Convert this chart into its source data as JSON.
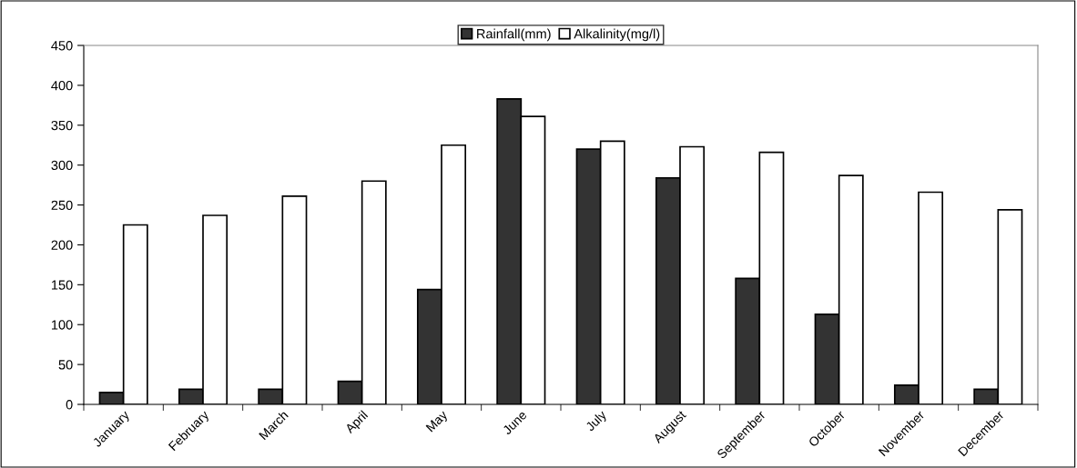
{
  "chart_data": {
    "type": "bar",
    "categories": [
      "January",
      "February",
      "March",
      "April",
      "May",
      "June",
      "July",
      "August",
      "September",
      "October",
      "November",
      "December"
    ],
    "series": [
      {
        "name": "Rainfall(mm)",
        "color": "#333333",
        "values": [
          15,
          19,
          19,
          29,
          144,
          383,
          320,
          284,
          158,
          113,
          24,
          19
        ]
      },
      {
        "name": "Alkalinity(mg/l)",
        "color": "#ffffff",
        "values": [
          225,
          237,
          261,
          280,
          325,
          361,
          330,
          323,
          316,
          287,
          266,
          244
        ]
      }
    ],
    "ylim": [
      0,
      450
    ],
    "yticks": [
      0,
      50,
      100,
      150,
      200,
      250,
      300,
      350,
      400,
      450
    ],
    "grid": false,
    "legend": "top"
  }
}
